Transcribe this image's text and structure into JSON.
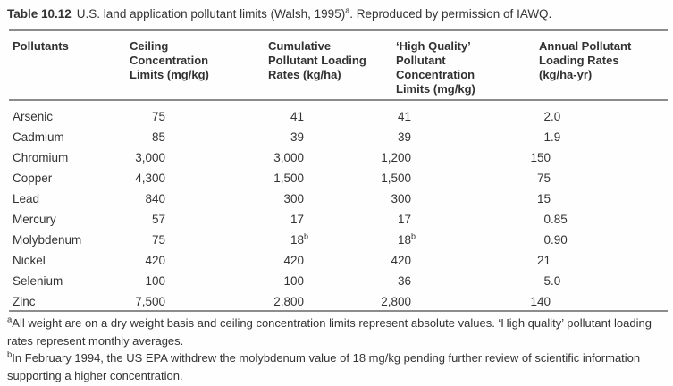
{
  "title": {
    "label": "Table 10.12",
    "text_before_sup": "U.S. land application pollutant limits (Walsh, 1995)",
    "sup": "a",
    "text_after_sup": ". Reproduced by permission of IAWQ."
  },
  "table": {
    "columns": [
      "Pollutants",
      "Ceiling Concentration Limits (mg/kg)",
      "Cumulative Pollutant Loading Rates (kg/ha)",
      "‘High Quality’ Pollutant Concentration Limits (mg/kg)",
      "Annual Pollutant Loading Rates (kg/ha-yr)"
    ],
    "rows": [
      {
        "pollutant": "Arsenic",
        "values": [
          "75",
          "41",
          "41",
          "2.0"
        ]
      },
      {
        "pollutant": "Cadmium",
        "values": [
          "85",
          "39",
          "39",
          "1.9"
        ]
      },
      {
        "pollutant": "Chromium",
        "values": [
          "3,000",
          "3,000",
          "1,200",
          "150"
        ]
      },
      {
        "pollutant": "Copper",
        "values": [
          "4,300",
          "1,500",
          "1,500",
          "75"
        ]
      },
      {
        "pollutant": "Lead",
        "values": [
          "840",
          "300",
          "300",
          "15"
        ]
      },
      {
        "pollutant": "Mercury",
        "values": [
          "57",
          "17",
          "17",
          "0.85"
        ]
      },
      {
        "pollutant": "Molybdenum",
        "values": [
          "75",
          "18^b",
          "18^b",
          "0.90"
        ]
      },
      {
        "pollutant": "Nickel",
        "values": [
          "420",
          "420",
          "420",
          "21"
        ]
      },
      {
        "pollutant": "Selenium",
        "values": [
          "100",
          "100",
          "36",
          "5.0"
        ]
      },
      {
        "pollutant": "Zinc",
        "values": [
          "7,500",
          "2,800",
          "2,800",
          "140"
        ]
      }
    ]
  },
  "footnotes": [
    {
      "marker": "a",
      "text": "All weight are on a dry weight basis and ceiling concentration limits represent absolute values. ‘High quality’ pollutant loading rates represent monthly averages."
    },
    {
      "marker": "b",
      "text": "In February 1994, the US EPA withdrew the molybdenum value of 18 mg/kg pending further review of scientific information supporting a higher concentration."
    }
  ],
  "colors": {
    "text": "#333333",
    "rule": "#8c8c8c",
    "background": "#fefefe"
  }
}
